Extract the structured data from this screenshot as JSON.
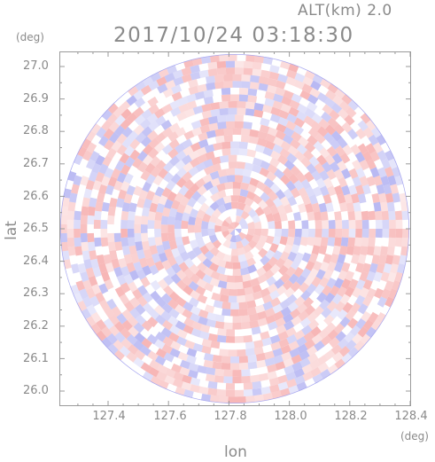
{
  "header": {
    "alt_label": "ALT(km) 2.0",
    "timestamp": "2017/10/24 03:18:30"
  },
  "axes": {
    "y_unit": "(deg)",
    "x_unit": "(deg)",
    "y_title": "lat",
    "x_title": "lon",
    "y_ticks": [
      "27.0",
      "26.9",
      "26.8",
      "26.7",
      "26.6",
      "26.5",
      "26.4",
      "26.3",
      "26.2",
      "26.1",
      "26.0"
    ],
    "x_ticks": [
      "127.4",
      "127.6",
      "127.8",
      "128.0",
      "128.2",
      "128.4"
    ]
  },
  "colors": {
    "positive": "#f5a3a3",
    "negative": "#a8a8f0",
    "frame": "#9a9a9a"
  }
}
